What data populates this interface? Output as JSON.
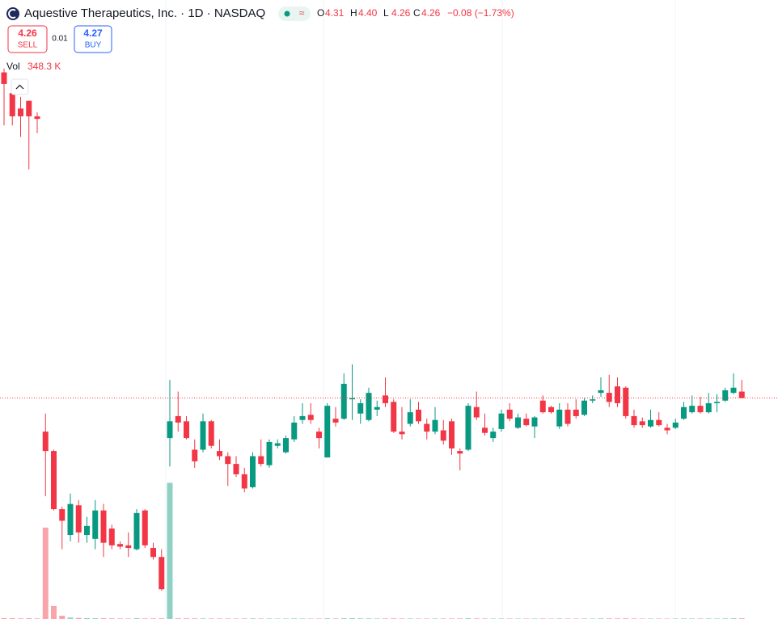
{
  "header": {
    "title": "Aquestive Therapeutics, Inc. · 1D · NASDAQ",
    "status_icon": "≈",
    "ohlc": [
      {
        "label": "O",
        "value": "4.31"
      },
      {
        "label": "H",
        "value": "4.40"
      },
      {
        "label": "L",
        "value": "4.26"
      },
      {
        "label": "C",
        "value": "4.26"
      }
    ],
    "change": "−0.08 (−1.73%)"
  },
  "trade": {
    "sell_price": "4.26",
    "sell": "SELL",
    "spread": "0.01",
    "buy_price": "4.27",
    "buy": "BUY"
  },
  "chart_data": {
    "type": "candlestick",
    "open": [
      6.78,
      6.62,
      6.5,
      6.56,
      6.44,
      4.0,
      3.85,
      3.4,
      3.2,
      3.43,
      3.2,
      3.17,
      3.39,
      3.25,
      3.13,
      3.12,
      3.09,
      3.39,
      3.1,
      3.03,
      3.95,
      4.12,
      4.08,
      3.86,
      3.86,
      4.08,
      3.85,
      3.81,
      3.75,
      3.67,
      3.57,
      3.81,
      3.74,
      3.89,
      3.84,
      3.94,
      4.09,
      4.13,
      4.0,
      3.8,
      4.1,
      4.1,
      4.25,
      4.14,
      4.09,
      4.17,
      4.28,
      4.23,
      4.0,
      4.06,
      4.17,
      4.06,
      4.0,
      4.01,
      4.08,
      3.85,
      3.86,
      4.19,
      4.03,
      3.95,
      4.02,
      4.17,
      4.03,
      4.1,
      4.04,
      4.24,
      4.19,
      4.04,
      4.17,
      4.17,
      4.13,
      4.24,
      4.3,
      4.3,
      4.35,
      4.34,
      4.12,
      4.08,
      4.04,
      4.09,
      4.03,
      4.03,
      4.1,
      4.15,
      4.2,
      4.15,
      4.22,
      4.24,
      4.3,
      4.31
    ],
    "high": [
      6.81,
      6.72,
      6.59,
      6.56,
      6.47,
      4.14,
      3.86,
      3.42,
      3.52,
      3.47,
      3.34,
      3.47,
      3.44,
      3.28,
      3.15,
      3.22,
      3.4,
      3.4,
      3.14,
      3.09,
      4.4,
      4.31,
      4.12,
      3.94,
      4.14,
      4.09,
      3.94,
      3.84,
      3.81,
      3.72,
      3.84,
      3.94,
      3.94,
      3.94,
      3.97,
      4.12,
      4.22,
      4.22,
      4.03,
      4.22,
      4.19,
      4.45,
      4.52,
      4.25,
      4.34,
      4.24,
      4.42,
      4.25,
      4.19,
      4.25,
      4.23,
      4.1,
      4.19,
      4.09,
      4.1,
      3.87,
      4.22,
      4.31,
      4.14,
      4.03,
      4.17,
      4.22,
      4.14,
      4.14,
      4.12,
      4.28,
      4.2,
      4.22,
      4.22,
      4.25,
      4.26,
      4.28,
      4.42,
      4.44,
      4.42,
      4.35,
      4.17,
      4.11,
      4.17,
      4.15,
      4.06,
      4.1,
      4.23,
      4.28,
      4.27,
      4.3,
      4.29,
      4.34,
      4.45,
      4.4
    ],
    "low": [
      6.37,
      6.37,
      6.28,
      6.03,
      6.31,
      3.5,
      3.39,
      3.09,
      3.15,
      3.14,
      3.14,
      3.09,
      3.03,
      3.09,
      3.09,
      3.03,
      3.08,
      3.1,
      3.01,
      2.77,
      3.73,
      4.0,
      3.94,
      3.72,
      3.84,
      3.87,
      3.78,
      3.58,
      3.65,
      3.53,
      3.56,
      3.73,
      3.72,
      3.87,
      3.83,
      3.92,
      4.06,
      4.06,
      3.87,
      3.8,
      4.04,
      4.09,
      4.09,
      4.06,
      4.08,
      4.12,
      4.19,
      3.99,
      3.94,
      4.04,
      4.06,
      3.94,
      3.98,
      3.9,
      3.82,
      3.7,
      3.85,
      4.09,
      3.97,
      3.92,
      4.0,
      4.08,
      4.02,
      4.04,
      3.95,
      4.14,
      4.14,
      4.02,
      4.04,
      4.1,
      4.12,
      4.22,
      4.27,
      4.19,
      4.19,
      4.1,
      4.03,
      4.03,
      4.03,
      4.04,
      3.98,
      4.02,
      4.09,
      4.14,
      4.14,
      4.14,
      4.15,
      4.23,
      4.29,
      4.26
    ],
    "close": [
      6.69,
      6.44,
      6.44,
      6.44,
      6.42,
      3.85,
      3.4,
      3.31,
      3.44,
      3.22,
      3.27,
      3.39,
      3.14,
      3.12,
      3.11,
      3.1,
      3.37,
      3.12,
      3.03,
      2.78,
      4.08,
      4.07,
      3.95,
      3.77,
      4.08,
      3.89,
      3.81,
      3.75,
      3.67,
      3.56,
      3.81,
      3.75,
      3.92,
      3.91,
      3.95,
      4.07,
      4.12,
      4.09,
      3.95,
      4.2,
      4.07,
      4.37,
      4.26,
      4.22,
      4.3,
      4.19,
      4.22,
      4.0,
      3.98,
      4.15,
      4.08,
      4.0,
      4.09,
      3.93,
      3.87,
      3.83,
      4.2,
      4.11,
      3.99,
      4.0,
      4.14,
      4.1,
      4.11,
      4.05,
      4.11,
      4.15,
      4.15,
      4.17,
      4.06,
      4.12,
      4.24,
      4.25,
      4.32,
      4.23,
      4.22,
      4.12,
      4.05,
      4.05,
      4.09,
      4.05,
      4.01,
      4.07,
      4.19,
      4.2,
      4.15,
      4.22,
      4.23,
      4.32,
      4.34,
      4.26
    ],
    "volume": [
      420000,
      380000,
      300000,
      360000,
      290000,
      44300000,
      6300000,
      1600000,
      700000,
      520000,
      410000,
      360000,
      380000,
      300000,
      250000,
      220000,
      390000,
      280000,
      300000,
      350000,
      66000000,
      350000,
      330000,
      310000,
      280000,
      260000,
      240000,
      250000,
      230000,
      270000,
      290000,
      240000,
      260000,
      210000,
      230000,
      280000,
      250000,
      220000,
      240000,
      330000,
      260000,
      340000,
      380000,
      300000,
      290000,
      230000,
      270000,
      310000,
      260000,
      240000,
      220000,
      230000,
      240000,
      250000,
      260000,
      280000,
      330000,
      290000,
      250000,
      220000,
      240000,
      230000,
      210000,
      220000,
      230000,
      260000,
      200000,
      240000,
      230000,
      220000,
      250000,
      210000,
      300000,
      310000,
      290000,
      320000,
      260000,
      220000,
      230000,
      210000,
      200000,
      220000,
      260000,
      240000,
      230000,
      250000,
      220000,
      280000,
      330000,
      348300
    ],
    "volume_label": "Vol",
    "volume_value_label": "348.3 K",
    "ylim": [
      2.55,
      7.34
    ],
    "volume_ylim": [
      0,
      300000000
    ],
    "up_color": "#089981",
    "down_color": "#f23645"
  }
}
